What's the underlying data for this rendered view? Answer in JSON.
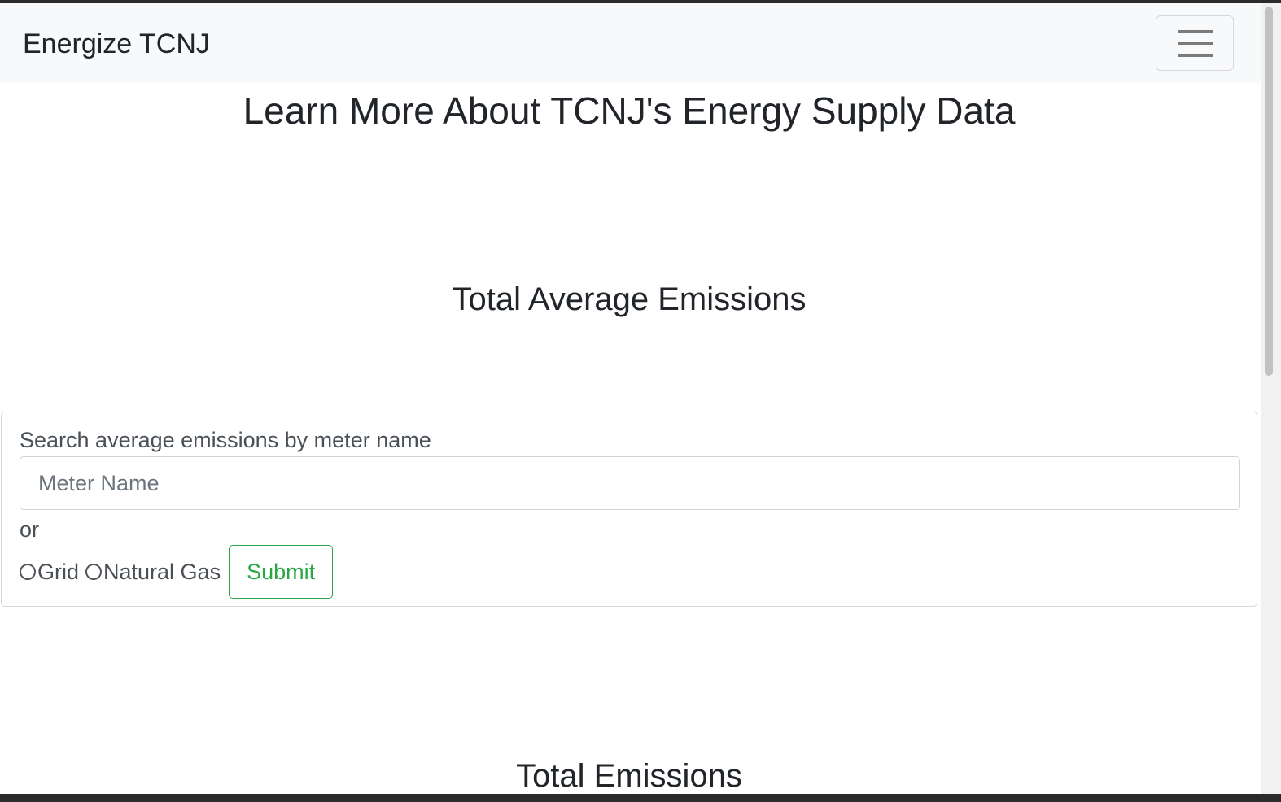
{
  "navbar": {
    "brand": "Energize TCNJ",
    "toggler_icon": "hamburger-icon"
  },
  "page": {
    "title": "Learn More About TCNJ's Energy Supply Data"
  },
  "sections": {
    "average_title": "Total Average Emissions",
    "total_title": "Total Emissions"
  },
  "search": {
    "label": "Search average emissions by meter name",
    "placeholder": "Meter Name",
    "value": "",
    "or_text": "or",
    "options": [
      "Grid",
      "Natural Gas"
    ],
    "submit_label": "Submit"
  },
  "colors": {
    "accent": "#28a745",
    "navbar_bg": "#f8f9fa"
  }
}
